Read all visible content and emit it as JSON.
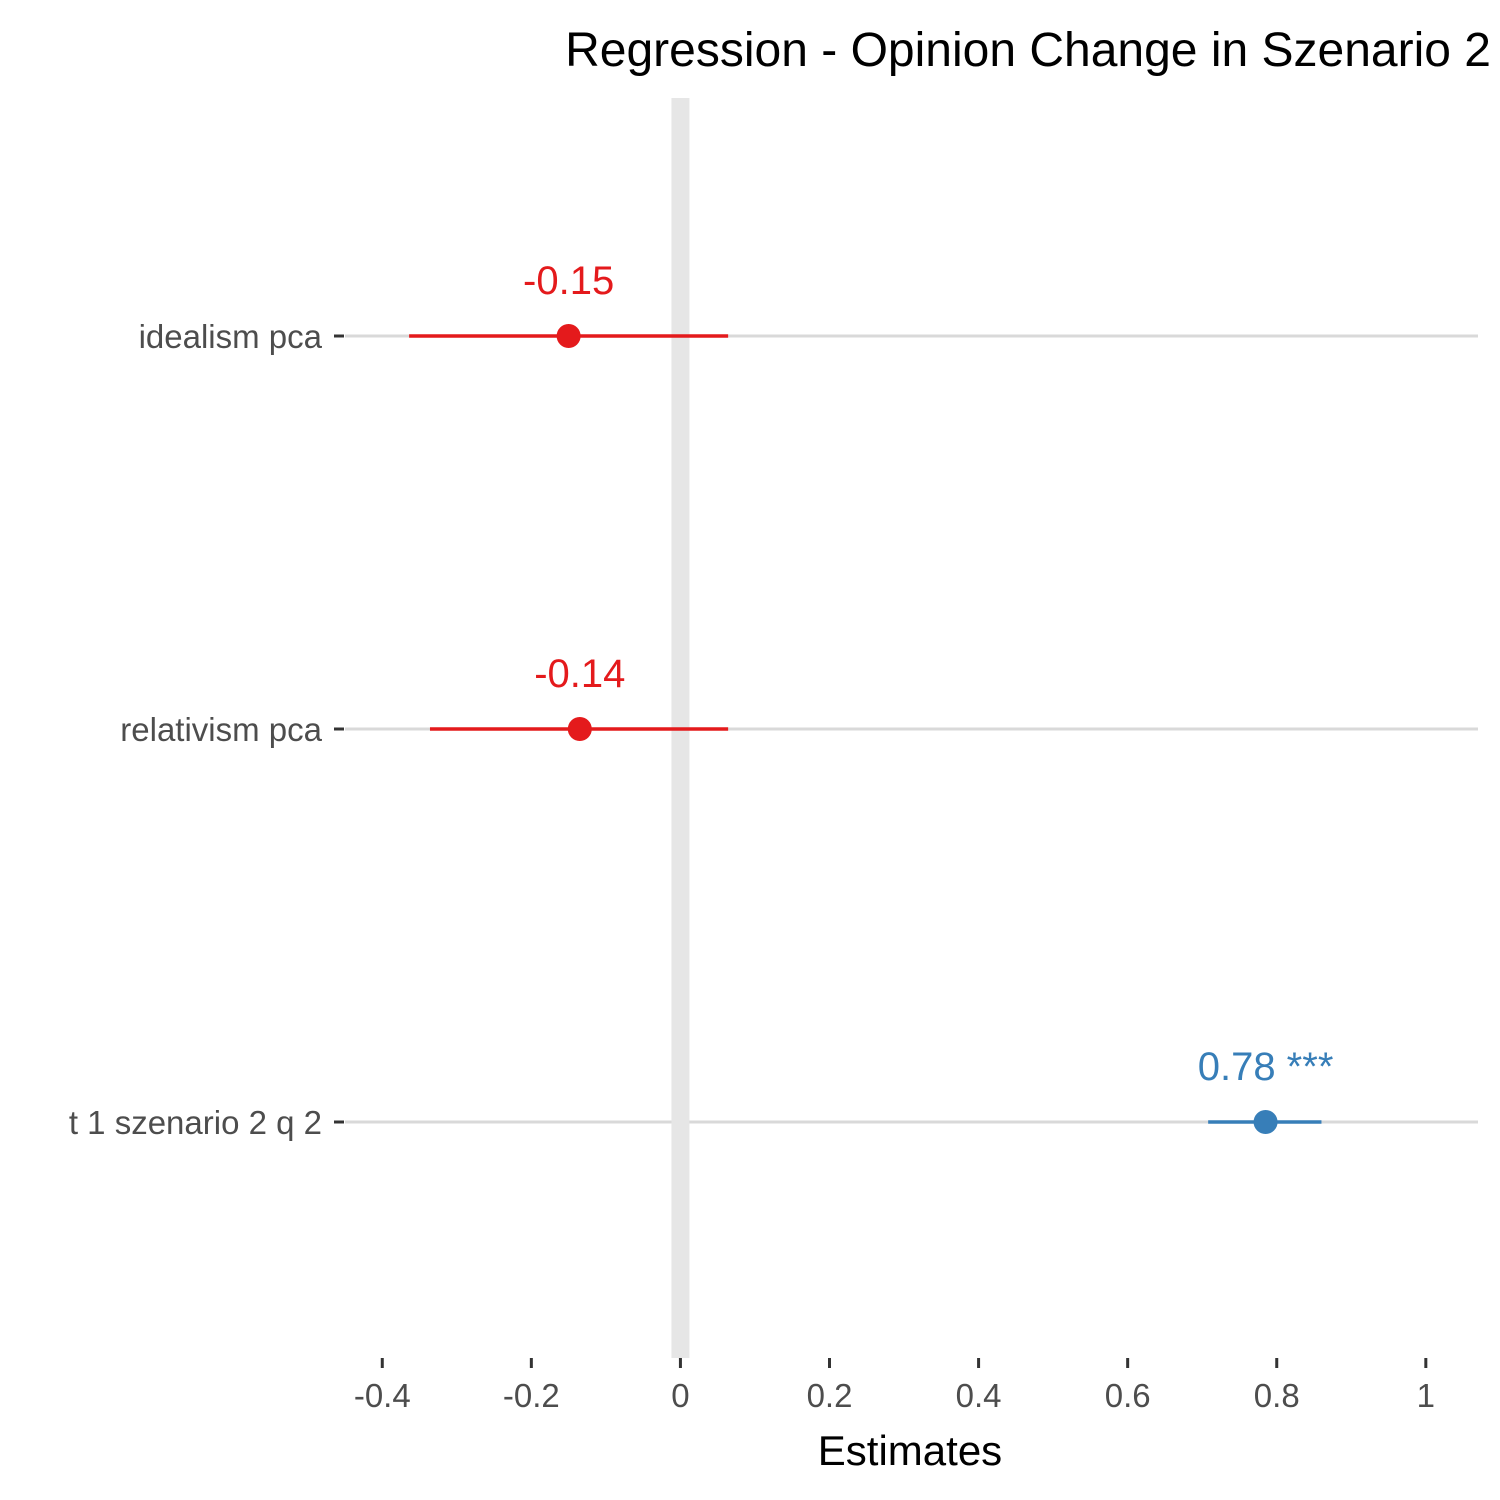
{
  "chart_data": {
    "type": "forest",
    "title": "Regression - Opinion Change in Szenario 2",
    "xlabel": "Estimates",
    "ylabel": "",
    "xlim": [
      -0.45,
      1.07
    ],
    "x_ticks": [
      -0.4,
      -0.2,
      0,
      0.2,
      0.4,
      0.6,
      0.8,
      1
    ],
    "x_tick_labels": [
      "-0.4",
      "-0.2",
      "0",
      "0.2",
      "0.4",
      "0.6",
      "0.8",
      "1"
    ],
    "reference_line": 0,
    "grid": "horizontal-major",
    "terms": [
      {
        "label": "idealism pca",
        "estimate": -0.15,
        "ci_low": -0.364,
        "ci_high": 0.064,
        "value_label": "-0.15",
        "color": "#e41a1c"
      },
      {
        "label": "relativism pca",
        "estimate": -0.135,
        "ci_low": -0.336,
        "ci_high": 0.064,
        "value_label": "-0.14",
        "color": "#e41a1c"
      },
      {
        "label": "t 1 szenario 2 q 2",
        "estimate": 0.785,
        "ci_low": 0.708,
        "ci_high": 0.86,
        "value_label": "0.78 ***",
        "color": "#377eb8"
      }
    ]
  }
}
